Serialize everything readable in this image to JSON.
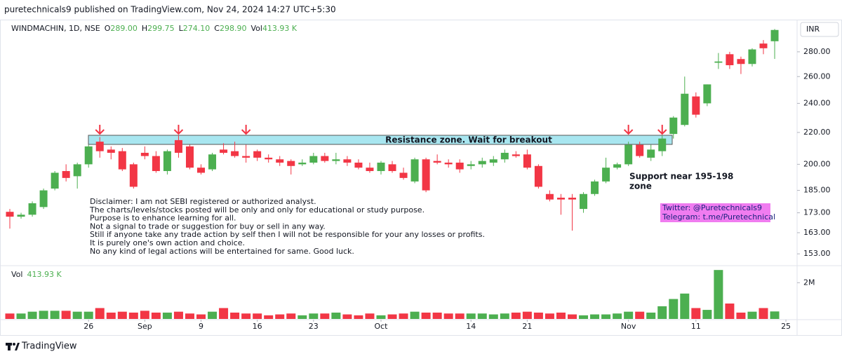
{
  "header": {
    "publisher": "puretechnicals9 published on TradingView.com, Nov 24, 2024 14:27 UTC+5:30"
  },
  "chart_data": {
    "type": "candlestick",
    "symbol": "WINDMACHIN, 1D, NSE",
    "ohlc_header": [
      {
        "label": "O",
        "value": "289.00"
      },
      {
        "label": "H",
        "value": "299.75"
      },
      {
        "label": "L",
        "value": "274.10"
      },
      {
        "label": "C",
        "value": "298.90"
      },
      {
        "label": "Vol",
        "value": "413.93 K"
      }
    ],
    "currency": "INR",
    "log_scale": true,
    "up_color": "#4caf50",
    "down_color": "#f23645",
    "ylim": [
      148,
      307
    ],
    "yticks": [
      {
        "value": 153,
        "label": "153.00"
      },
      {
        "value": 163,
        "label": "163.00"
      },
      {
        "value": 173,
        "label": "173.00"
      },
      {
        "value": 185,
        "label": "185.00"
      },
      {
        "value": 200,
        "label": "200.00"
      },
      {
        "value": 220,
        "label": "220.00"
      },
      {
        "value": 240,
        "label": "240.00"
      },
      {
        "value": 260,
        "label": "260.00"
      },
      {
        "value": 280,
        "label": "280.00"
      }
    ],
    "xticks": [
      {
        "value": 7,
        "label": "26"
      },
      {
        "value": 12,
        "label": "Sep"
      },
      {
        "value": 17,
        "label": "9"
      },
      {
        "value": 22,
        "label": "16"
      },
      {
        "value": 27,
        "label": "23"
      },
      {
        "value": 33,
        "label": "Oct"
      },
      {
        "value": 41,
        "label": "14"
      },
      {
        "value": 46,
        "label": "21"
      },
      {
        "value": 55,
        "label": "Nov"
      },
      {
        "value": 61,
        "label": "11"
      },
      {
        "value": 69,
        "label": "25"
      }
    ],
    "open": [
      173.5,
      171,
      172,
      176,
      186,
      196,
      193,
      200,
      214,
      209,
      208,
      200,
      207,
      205,
      196,
      215,
      211,
      198,
      197,
      209,
      208,
      205,
      208,
      204,
      203,
      202,
      200,
      201,
      205,
      202,
      203,
      201,
      198,
      196,
      200,
      195,
      190,
      203,
      202,
      201,
      201,
      199,
      200,
      201,
      203,
      206,
      206,
      199,
      183,
      181,
      181,
      175,
      183,
      190,
      198,
      200,
      212,
      204,
      208,
      219,
      225,
      245,
      240,
      271,
      278,
      274,
      270,
      287,
      289
    ],
    "high": [
      175,
      173,
      179,
      186,
      196,
      200,
      201,
      212,
      217,
      211,
      210,
      201,
      211,
      208,
      209,
      218,
      212,
      200,
      207,
      213,
      214,
      212,
      209,
      206,
      205,
      203,
      203,
      207,
      207,
      207,
      205,
      203,
      201,
      202,
      202,
      198,
      204,
      204,
      206,
      203,
      203,
      202,
      204,
      205,
      209,
      208,
      209,
      200,
      185,
      183,
      183,
      184,
      191,
      204,
      201,
      214,
      214,
      212,
      218,
      231,
      260,
      248,
      254,
      279,
      280,
      276,
      283,
      290,
      299.75
    ],
    "low": [
      165,
      170,
      171,
      175,
      185,
      190,
      186,
      198,
      204,
      203,
      196,
      186,
      203,
      195,
      194,
      204,
      197,
      194,
      196,
      206,
      204,
      201,
      202,
      201,
      199,
      194,
      199,
      200,
      201,
      200,
      199,
      197,
      195,
      194,
      195,
      191,
      189,
      184,
      200,
      198,
      195,
      197,
      198,
      199,
      201,
      204,
      197,
      186,
      179,
      172,
      164,
      173,
      182,
      189,
      197,
      199,
      204,
      202,
      205,
      216,
      224,
      230,
      238,
      266,
      266,
      262,
      268,
      278,
      274.1
    ],
    "close": [
      171,
      172,
      178,
      185,
      195,
      192,
      200,
      211,
      208,
      207,
      197,
      187,
      205,
      196,
      208,
      207,
      198,
      195,
      206,
      207,
      205,
      204,
      204,
      203,
      201,
      199,
      201,
      205,
      202,
      203,
      201,
      198,
      196,
      201,
      196,
      192,
      203,
      185,
      201,
      200,
      197,
      200,
      202,
      203,
      207,
      205,
      198,
      187,
      180,
      180,
      180,
      183,
      190,
      198,
      200,
      212,
      205,
      209,
      216,
      230,
      247,
      232,
      254,
      272,
      269,
      270,
      282,
      283,
      298.9
    ],
    "volume_label": "Vol",
    "vlim": [
      0,
      2900000
    ],
    "vticks": [
      {
        "value": 2000000,
        "label": "2M"
      }
    ],
    "volume": [
      300000,
      300000,
      400000,
      450000,
      450000,
      450000,
      400000,
      400000,
      600000,
      350000,
      400000,
      350000,
      450000,
      350000,
      350000,
      400000,
      300000,
      250000,
      400000,
      600000,
      350000,
      300000,
      300000,
      200000,
      250000,
      300000,
      200000,
      300000,
      300000,
      350000,
      250000,
      200000,
      300000,
      200000,
      250000,
      300000,
      400000,
      350000,
      350000,
      300000,
      300000,
      300000,
      300000,
      250000,
      300000,
      350000,
      400000,
      350000,
      300000,
      350000,
      250000,
      200000,
      250000,
      250000,
      300000,
      400000,
      400000,
      350000,
      700000,
      1100000,
      1400000,
      600000,
      500000,
      2700000,
      850000,
      350000,
      400000,
      600000,
      413930
    ],
    "annotations": {
      "resistance": "Resistance zone. Wait for breakout",
      "support": [
        "Support near 195-198",
        "zone"
      ],
      "disclaimer": [
        "Disclaimer: I am not SEBI registered or authorized analyst.",
        "The charts/levels/stocks posted will be only and only for educational or study purpose.",
        "Purpose is to enhance learning for all.",
        "Not a signal to trade or suggestion for buy or sell in any way.",
        "Still if anyone take any trade action by self then I will not be responsible for your any losses or profits.",
        "It is purely one's own action and choice.",
        "No any kind of legal actions will be entertained for same. Good luck."
      ],
      "contact": [
        "Twitter: @Puretechnicals9",
        "Telegram: t.me/Puretechnical"
      ]
    }
  },
  "footer": {
    "brand": "TradingView"
  }
}
